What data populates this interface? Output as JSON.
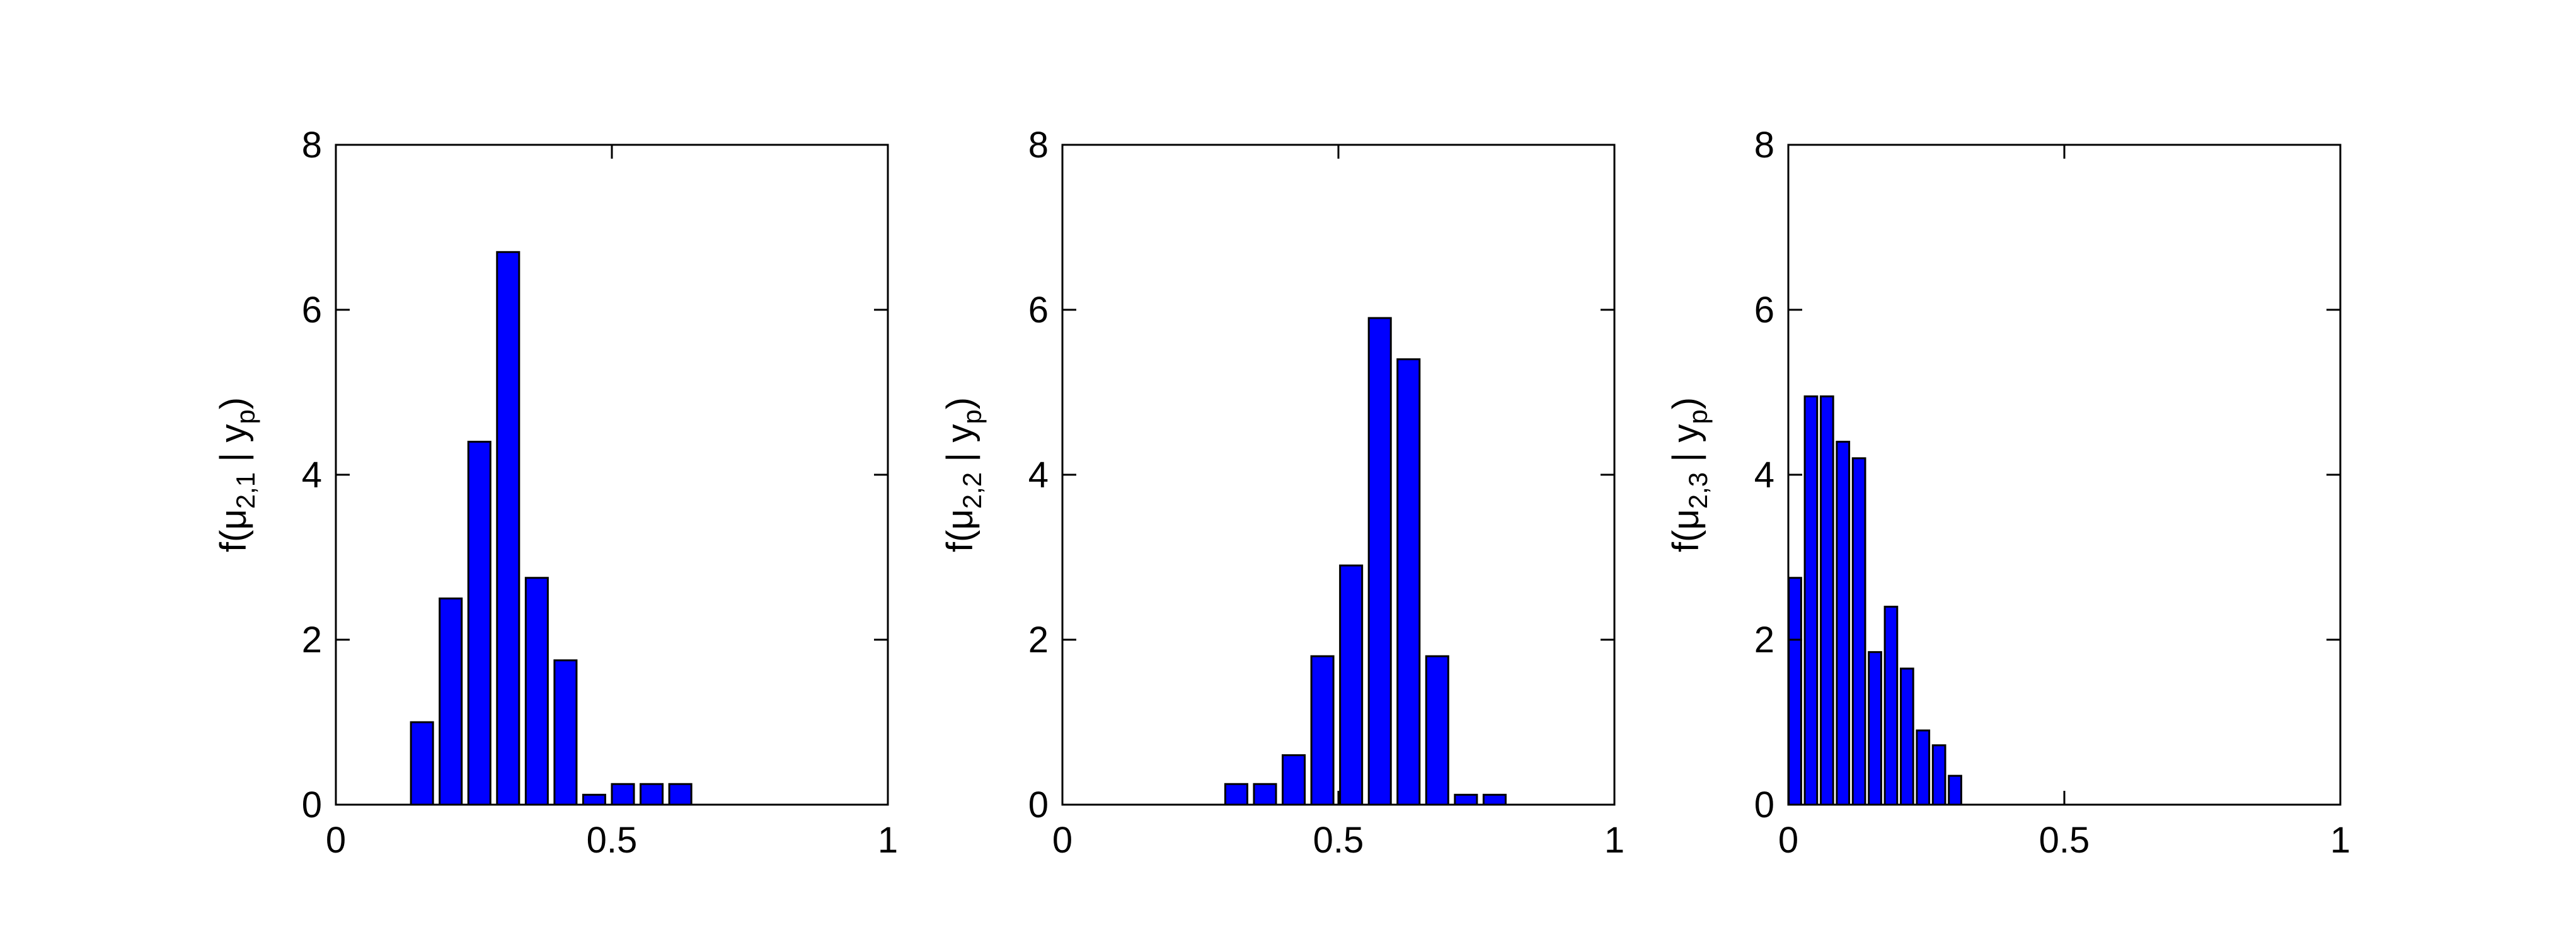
{
  "colors": {
    "bar_fill": "#0000ff",
    "bar_edge": "#000000",
    "axes": "#000000",
    "background": "#ffffff"
  },
  "chart_data": [
    {
      "type": "bar",
      "ylabel": {
        "prefix": "f(μ",
        "sub1": "2,1",
        "mid": " | y",
        "sub2": "p",
        "suffix": ")"
      },
      "xlim": [
        0,
        1
      ],
      "ylim": [
        0,
        8
      ],
      "xticks": [
        0,
        0.5,
        1
      ],
      "xtick_labels": [
        "0",
        "0.5",
        "1"
      ],
      "yticks": [
        0,
        2,
        4,
        6,
        8
      ],
      "ytick_labels": [
        "0",
        "2",
        "4",
        "6",
        "8"
      ],
      "bar_width": 0.04,
      "grid": false,
      "x": [
        0.156,
        0.208,
        0.26,
        0.312,
        0.364,
        0.416,
        0.468,
        0.52,
        0.572,
        0.624
      ],
      "values": [
        1.0,
        2.5,
        4.4,
        6.7,
        2.75,
        1.75,
        0.12,
        0.25,
        0.25,
        0.25
      ]
    },
    {
      "type": "bar",
      "ylabel": {
        "prefix": "f(μ",
        "sub1": "2,2",
        "mid": " | y",
        "sub2": "p",
        "suffix": ")"
      },
      "xlim": [
        0,
        1
      ],
      "ylim": [
        0,
        8
      ],
      "xticks": [
        0,
        0.5,
        1
      ],
      "xtick_labels": [
        "0",
        "0.5",
        "1"
      ],
      "yticks": [
        0,
        2,
        4,
        6,
        8
      ],
      "ytick_labels": [
        "0",
        "2",
        "4",
        "6",
        "8"
      ],
      "bar_width": 0.04,
      "grid": false,
      "x": [
        0.315,
        0.367,
        0.419,
        0.471,
        0.523,
        0.575,
        0.627,
        0.679,
        0.731,
        0.783
      ],
      "values": [
        0.25,
        0.25,
        0.6,
        1.8,
        2.9,
        5.9,
        5.4,
        1.8,
        0.12,
        0.12
      ]
    },
    {
      "type": "bar",
      "ylabel": {
        "prefix": "f(μ",
        "sub1": "2,3",
        "mid": " | y",
        "sub2": "p",
        "suffix": ")"
      },
      "xlim": [
        0,
        1
      ],
      "ylim": [
        0,
        8
      ],
      "xticks": [
        0,
        0.5,
        1
      ],
      "xtick_labels": [
        "0",
        "0.5",
        "1"
      ],
      "yticks": [
        0,
        2,
        4,
        6,
        8
      ],
      "ytick_labels": [
        "0",
        "2",
        "4",
        "6",
        "8"
      ],
      "bar_width": 0.0225,
      "grid": false,
      "x": [
        0.012,
        0.041,
        0.07,
        0.099,
        0.128,
        0.157,
        0.186,
        0.215,
        0.244,
        0.273,
        0.302,
        0.331,
        0.36
      ],
      "values": [
        2.75,
        4.95,
        4.95,
        4.4,
        4.2,
        1.85,
        2.4,
        1.65,
        0.9,
        0.72,
        0.35,
        0,
        0
      ]
    }
  ]
}
